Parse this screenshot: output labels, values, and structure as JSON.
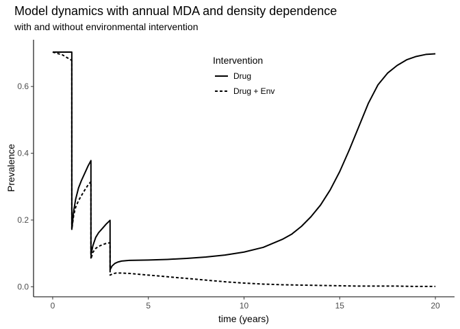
{
  "chart_data": {
    "type": "line",
    "title": "Model dynamics with annual MDA and density dependence",
    "subtitle": "with and without environmental intervention",
    "xlabel": "time (years)",
    "ylabel": "Prevalence",
    "xlim": [
      -1.0,
      21.0
    ],
    "ylim": [
      -0.03,
      0.74
    ],
    "x_ticks": [
      0,
      5,
      10,
      15,
      20
    ],
    "x_tick_labels": [
      "0",
      "5",
      "10",
      "15",
      "20"
    ],
    "y_ticks": [
      0.0,
      0.2,
      0.4,
      0.6
    ],
    "y_tick_labels": [
      "0.0",
      "0.2",
      "0.4",
      "0.6"
    ],
    "grid": false,
    "legend": {
      "title": "Intervention",
      "position": "top-center"
    },
    "series": [
      {
        "name": "Drug",
        "linetype": "solid",
        "color": "#000000",
        "points": [
          [
            0,
            0.703
          ],
          [
            0.5,
            0.703
          ],
          [
            0.999,
            0.703
          ],
          [
            1.0,
            0.172
          ],
          [
            1.1,
            0.228
          ],
          [
            1.2,
            0.262
          ],
          [
            1.35,
            0.296
          ],
          [
            1.5,
            0.318
          ],
          [
            1.7,
            0.343
          ],
          [
            1.85,
            0.362
          ],
          [
            1.999,
            0.378
          ],
          [
            2.0,
            0.095
          ],
          [
            2.1,
            0.123
          ],
          [
            2.25,
            0.148
          ],
          [
            2.4,
            0.162
          ],
          [
            2.6,
            0.175
          ],
          [
            2.8,
            0.188
          ],
          [
            2.999,
            0.199
          ],
          [
            3.0,
            0.051
          ],
          [
            3.1,
            0.062
          ],
          [
            3.25,
            0.07
          ],
          [
            3.4,
            0.074
          ],
          [
            3.6,
            0.077
          ],
          [
            4.0,
            0.079
          ],
          [
            5.0,
            0.08
          ],
          [
            6.0,
            0.082
          ],
          [
            7.0,
            0.085
          ],
          [
            8.0,
            0.089
          ],
          [
            9.0,
            0.095
          ],
          [
            10.0,
            0.104
          ],
          [
            11.0,
            0.118
          ],
          [
            12.0,
            0.142
          ],
          [
            12.5,
            0.158
          ],
          [
            13.0,
            0.181
          ],
          [
            13.5,
            0.21
          ],
          [
            14.0,
            0.245
          ],
          [
            14.5,
            0.29
          ],
          [
            15.0,
            0.345
          ],
          [
            15.5,
            0.41
          ],
          [
            16.0,
            0.48
          ],
          [
            16.5,
            0.55
          ],
          [
            17.0,
            0.605
          ],
          [
            17.5,
            0.64
          ],
          [
            18.0,
            0.663
          ],
          [
            18.5,
            0.68
          ],
          [
            19.0,
            0.69
          ],
          [
            19.5,
            0.696
          ],
          [
            20.0,
            0.698
          ]
        ]
      },
      {
        "name": "Drug + Env",
        "linetype": "dashed",
        "color": "#000000",
        "points": [
          [
            0,
            0.703
          ],
          [
            0.5,
            0.695
          ],
          [
            0.999,
            0.678
          ],
          [
            1.0,
            0.172
          ],
          [
            1.1,
            0.215
          ],
          [
            1.2,
            0.238
          ],
          [
            1.35,
            0.258
          ],
          [
            1.5,
            0.273
          ],
          [
            1.7,
            0.292
          ],
          [
            1.85,
            0.305
          ],
          [
            1.999,
            0.315
          ],
          [
            2.0,
            0.083
          ],
          [
            2.1,
            0.103
          ],
          [
            2.25,
            0.115
          ],
          [
            2.4,
            0.121
          ],
          [
            2.6,
            0.126
          ],
          [
            2.8,
            0.13
          ],
          [
            2.999,
            0.132
          ],
          [
            3.0,
            0.035
          ],
          [
            3.15,
            0.039
          ],
          [
            3.3,
            0.041
          ],
          [
            3.6,
            0.041
          ],
          [
            4.0,
            0.04
          ],
          [
            5.0,
            0.035
          ],
          [
            6.0,
            0.03
          ],
          [
            7.0,
            0.025
          ],
          [
            8.0,
            0.02
          ],
          [
            9.0,
            0.015
          ],
          [
            10.0,
            0.011
          ],
          [
            11.0,
            0.008
          ],
          [
            12.0,
            0.006
          ],
          [
            13.0,
            0.005
          ],
          [
            14.0,
            0.004
          ],
          [
            15.0,
            0.003
          ],
          [
            16.0,
            0.002
          ],
          [
            17.0,
            0.002
          ],
          [
            18.0,
            0.002
          ],
          [
            19.0,
            0.001
          ],
          [
            20.0,
            0.001
          ]
        ]
      }
    ]
  }
}
